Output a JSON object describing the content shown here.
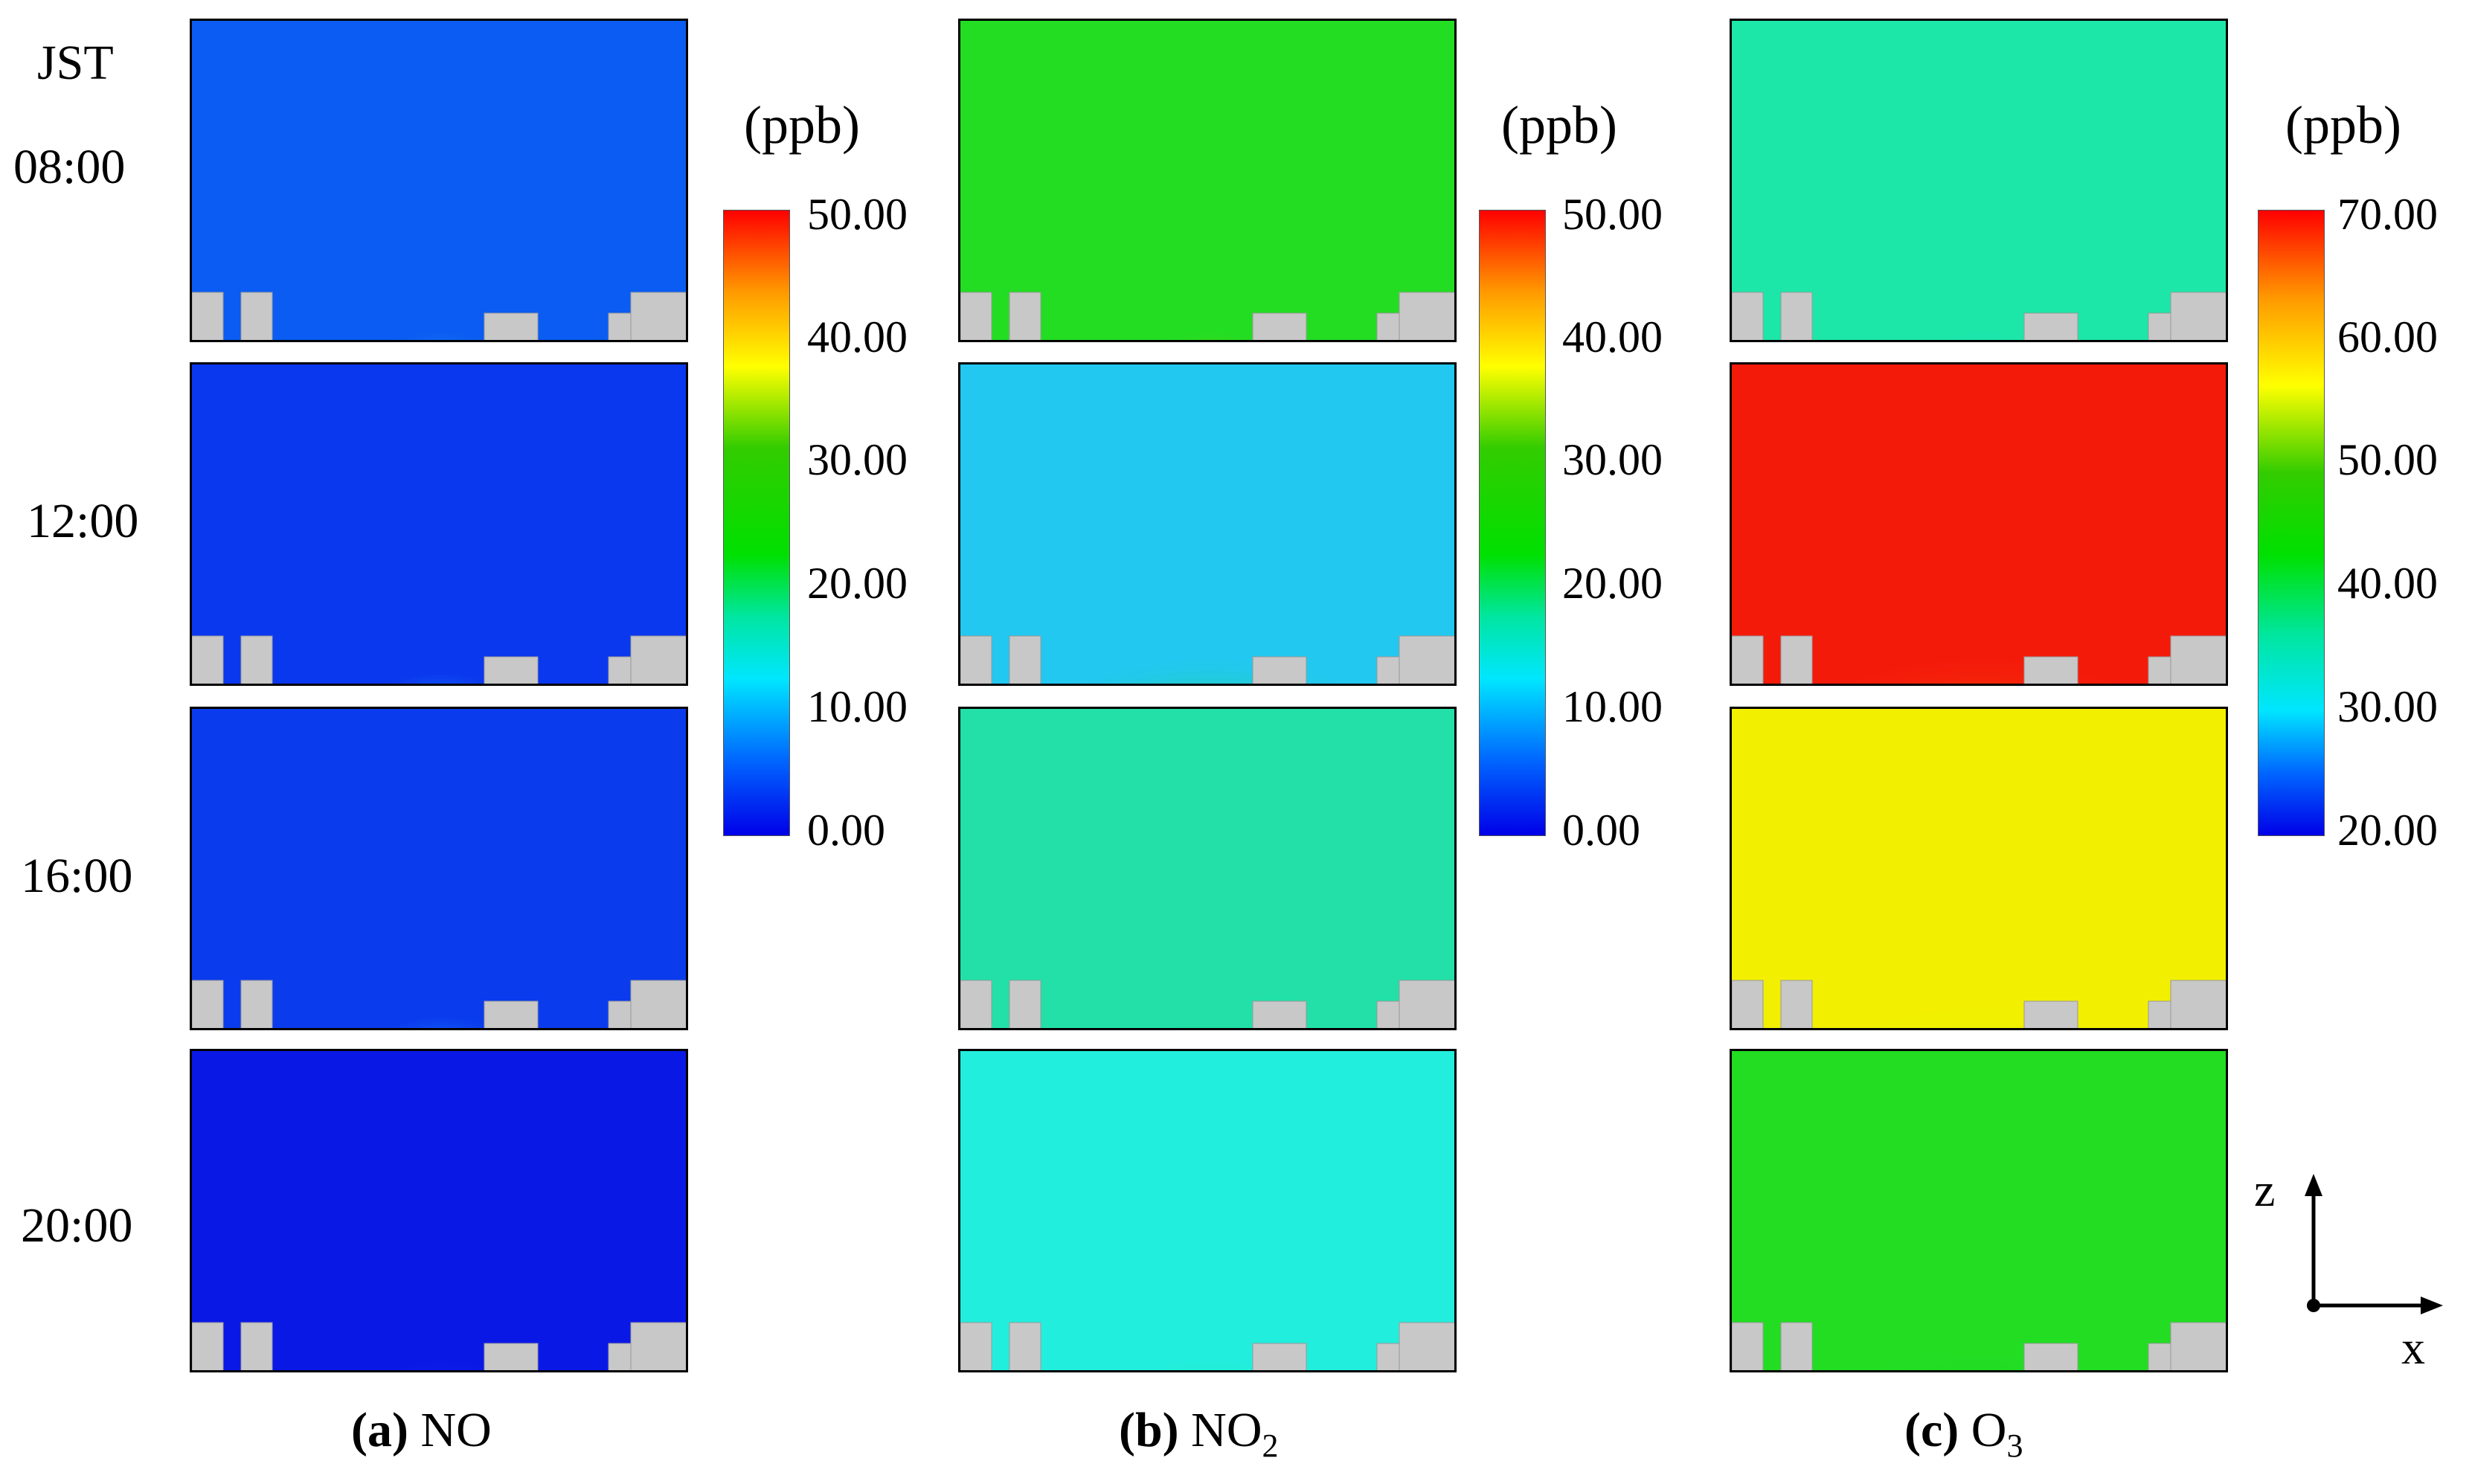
{
  "figure": {
    "jst_label": "JST",
    "times": [
      "08:00",
      "12:00",
      "16:00",
      "20:00"
    ],
    "columns": [
      {
        "id": "no",
        "caption_letter": "(a)",
        "caption_species": "NO",
        "caption_sub": "",
        "unit": "(ppb)",
        "colorbar_ticks": [
          "50.00",
          "40.00",
          "30.00",
          "20.00",
          "10.00",
          "0.00"
        ],
        "panel_colors": [
          "#0a5cf2",
          "#0a38ee",
          "#0a3ced",
          "#0a18e6"
        ]
      },
      {
        "id": "no2",
        "caption_letter": "(b)",
        "caption_species": "NO",
        "caption_sub": "2",
        "unit": "(ppb)",
        "colorbar_ticks": [
          "50.00",
          "40.00",
          "30.00",
          "20.00",
          "10.00",
          "0.00"
        ],
        "panel_colors": [
          "#22dd22",
          "#22c8f0",
          "#22e0a8",
          "#22eedd"
        ]
      },
      {
        "id": "o3",
        "caption_letter": "(c)",
        "caption_species": "O",
        "caption_sub": "3",
        "unit": "(ppb)",
        "colorbar_ticks": [
          "70.00",
          "60.00",
          "50.00",
          "40.00",
          "30.00",
          "20.00"
        ],
        "panel_colors": [
          "#1ce6a8",
          "#f41a0a",
          "#f2f000",
          "#22dd22"
        ]
      }
    ],
    "axes": {
      "z": "z",
      "x": "x"
    }
  }
}
